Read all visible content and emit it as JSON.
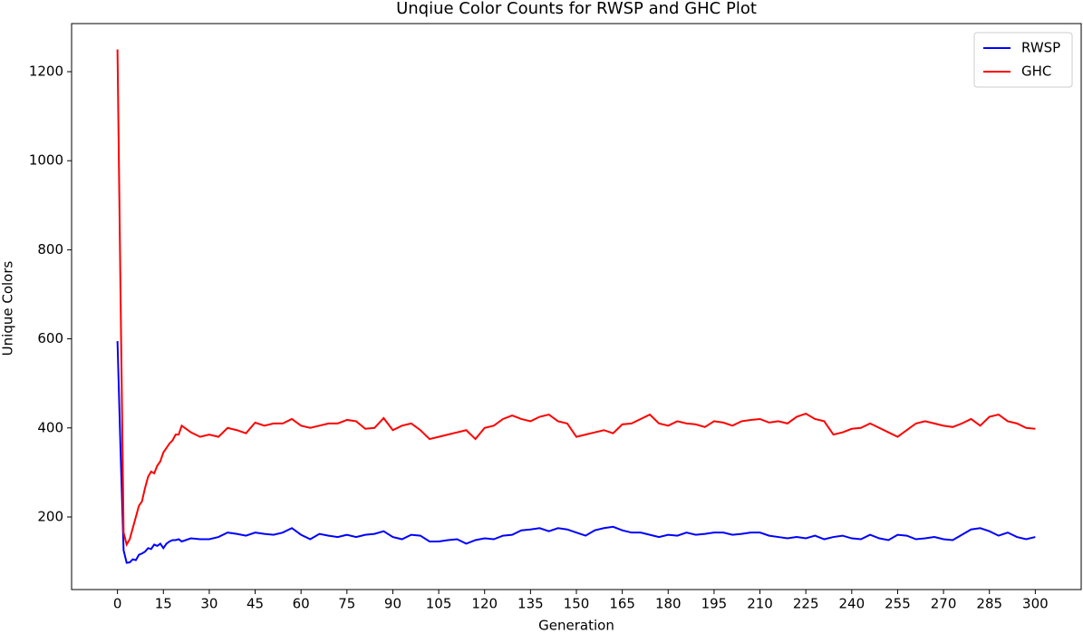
{
  "chart_data": {
    "type": "line",
    "title": "Unqiue Color Counts for RWSP and GHC Plot",
    "x_label": "Generation",
    "y_label": "Unique Colors",
    "x": [
      0,
      1,
      2,
      3,
      4,
      5,
      6,
      7,
      8,
      9,
      10,
      11,
      12,
      13,
      14,
      15,
      16,
      17,
      18,
      19,
      20,
      21,
      24,
      27,
      30,
      33,
      36,
      39,
      42,
      45,
      48,
      51,
      54,
      57,
      60,
      63,
      66,
      69,
      72,
      75,
      78,
      81,
      84,
      87,
      90,
      93,
      96,
      99,
      102,
      105,
      108,
      111,
      114,
      117,
      120,
      123,
      126,
      129,
      132,
      135,
      138,
      141,
      144,
      147,
      150,
      153,
      156,
      159,
      162,
      165,
      168,
      171,
      174,
      177,
      180,
      183,
      186,
      189,
      192,
      195,
      198,
      201,
      204,
      207,
      210,
      213,
      216,
      219,
      222,
      225,
      228,
      231,
      234,
      237,
      240,
      243,
      246,
      249,
      252,
      255,
      258,
      261,
      264,
      267,
      270,
      273,
      276,
      279,
      282,
      285,
      288,
      291,
      294,
      297,
      300
    ],
    "series": [
      {
        "name": "RWSP",
        "color": "#0000ff",
        "values": [
          595,
          350,
          125,
          97,
          98,
          105,
          103,
          115,
          118,
          122,
          130,
          128,
          138,
          135,
          140,
          130,
          140,
          145,
          148,
          148,
          150,
          145,
          152,
          150,
          150,
          155,
          165,
          162,
          158,
          165,
          162,
          160,
          165,
          175,
          160,
          150,
          162,
          158,
          155,
          160,
          155,
          160,
          162,
          168,
          155,
          150,
          160,
          158,
          145,
          145,
          148,
          150,
          140,
          148,
          152,
          150,
          158,
          160,
          170,
          172,
          175,
          168,
          175,
          172,
          165,
          158,
          170,
          175,
          178,
          170,
          165,
          165,
          160,
          155,
          160,
          158,
          165,
          160,
          162,
          165,
          165,
          160,
          162,
          165,
          165,
          158,
          155,
          152,
          155,
          152,
          158,
          150,
          155,
          158,
          152,
          150,
          160,
          152,
          148,
          160,
          158,
          150,
          152,
          155,
          150,
          148,
          160,
          172,
          175,
          168,
          158,
          165,
          155,
          150,
          155
        ]
      },
      {
        "name": "GHC",
        "color": "#ff0000",
        "values": [
          1250,
          700,
          165,
          138,
          150,
          175,
          200,
          225,
          235,
          265,
          290,
          302,
          298,
          315,
          325,
          345,
          355,
          365,
          372,
          385,
          385,
          405,
          390,
          380,
          385,
          380,
          400,
          395,
          388,
          412,
          405,
          410,
          410,
          420,
          405,
          400,
          405,
          410,
          410,
          418,
          415,
          398,
          400,
          422,
          395,
          405,
          410,
          395,
          375,
          380,
          385,
          390,
          395,
          375,
          400,
          405,
          420,
          428,
          420,
          415,
          425,
          430,
          415,
          410,
          380,
          385,
          390,
          395,
          388,
          408,
          410,
          420,
          430,
          410,
          405,
          415,
          410,
          408,
          402,
          415,
          412,
          405,
          415,
          418,
          420,
          412,
          415,
          410,
          425,
          432,
          420,
          415,
          385,
          390,
          398,
          400,
          410,
          400,
          390,
          380,
          395,
          410,
          415,
          410,
          405,
          402,
          410,
          420,
          405,
          425,
          430,
          415,
          410,
          400,
          398
        ]
      }
    ],
    "xlim": [
      -15,
      315
    ],
    "ylim": [
      37,
      1308
    ],
    "xticks": [
      0,
      15,
      30,
      45,
      60,
      75,
      90,
      105,
      120,
      135,
      150,
      165,
      180,
      195,
      210,
      225,
      240,
      255,
      270,
      285,
      300
    ],
    "yticks": [
      200,
      400,
      600,
      800,
      1000,
      1200
    ],
    "legend": "upper right"
  }
}
